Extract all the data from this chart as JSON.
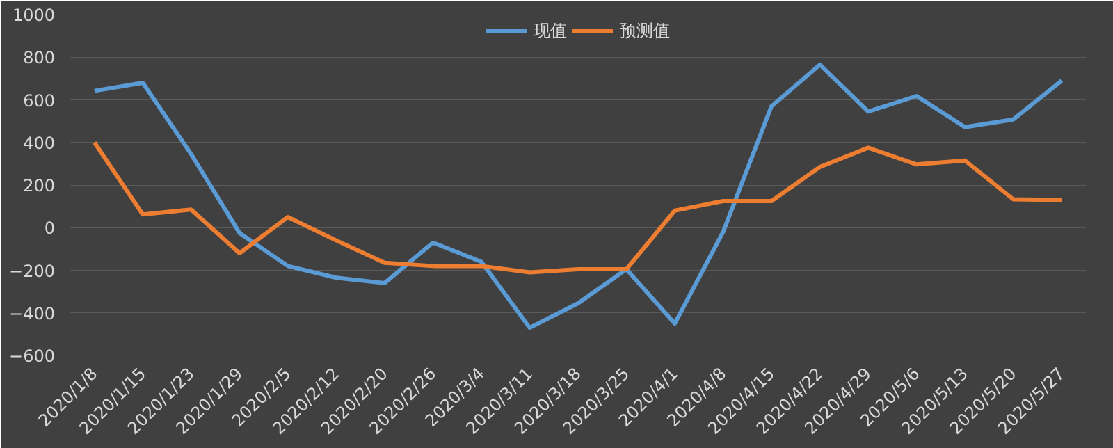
{
  "chart_data": {
    "type": "line",
    "categories": [
      "2020/1/8",
      "2020/1/15",
      "2020/1/23",
      "2020/1/29",
      "2020/2/5",
      "2020/2/12",
      "2020/2/20",
      "2020/2/26",
      "2020/3/4",
      "2020/3/11",
      "2020/3/18",
      "2020/3/25",
      "2020/4/1",
      "2020/4/8",
      "2020/4/15",
      "2020/4/22",
      "2020/4/29",
      "2020/5/6",
      "2020/5/13",
      "2020/5/20",
      "2020/5/27"
    ],
    "series": [
      {
        "name": "现值",
        "color": "#5b9bd5",
        "values": [
          642,
          680,
          345,
          -25,
          -180,
          -235,
          -260,
          -70,
          -160,
          -470,
          -355,
          -195,
          -450,
          -20,
          570,
          765,
          545,
          618,
          472,
          508,
          690
        ]
      },
      {
        "name": "预测值",
        "color": "#ed7d31",
        "values": [
          400,
          62,
          85,
          -120,
          50,
          -60,
          -165,
          -180,
          -180,
          -210,
          -195,
          -195,
          80,
          125,
          125,
          285,
          375,
          297,
          315,
          133,
          130
        ]
      }
    ],
    "ylim": [
      -600,
      1000
    ],
    "yticks": [
      -600,
      -400,
      -200,
      0,
      200,
      400,
      600,
      800,
      1000
    ],
    "grid": "y",
    "legend": "top",
    "marker": "none",
    "line_style": "solid"
  }
}
